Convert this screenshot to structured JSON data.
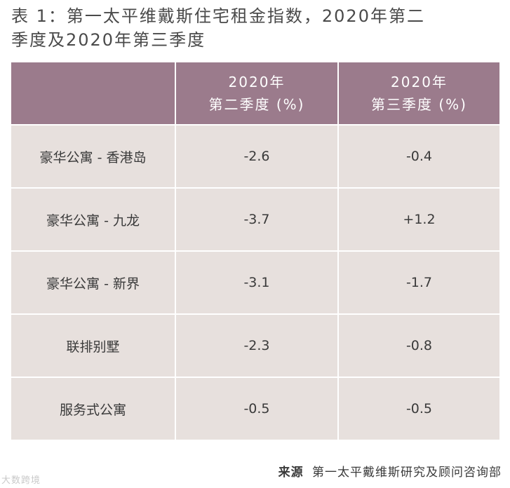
{
  "title": {
    "line1": "表 1：第一太平维戴斯住宅租金指数，2020年第二",
    "line2": "季度及2020年第三季度"
  },
  "table": {
    "header": {
      "c2_line1": "2020年",
      "c2_line2": "第二季度 (%)",
      "c3_line1": "2020年",
      "c3_line2": "第三季度 (%)"
    },
    "rows": [
      {
        "label": "豪华公寓 - 香港岛",
        "q2": "-2.6",
        "q3": "-0.4"
      },
      {
        "label": "豪华公寓 - 九龙",
        "q2": "-3.7",
        "q3": "+1.2"
      },
      {
        "label": "豪华公寓 - 新界",
        "q2": "-3.1",
        "q3": "-1.7"
      },
      {
        "label": "联排别墅",
        "q2": "-2.3",
        "q3": "-0.8"
      },
      {
        "label": "服务式公寓",
        "q2": "-0.5",
        "q3": "-0.5"
      }
    ]
  },
  "source": {
    "label": "来源",
    "text": "第一太平戴维斯研究及顾问咨询部"
  },
  "watermark": {
    "text": "大数跨境"
  },
  "colors": {
    "header_bg": "#9b7b8c",
    "body_bg": "#e7e0dd"
  }
}
